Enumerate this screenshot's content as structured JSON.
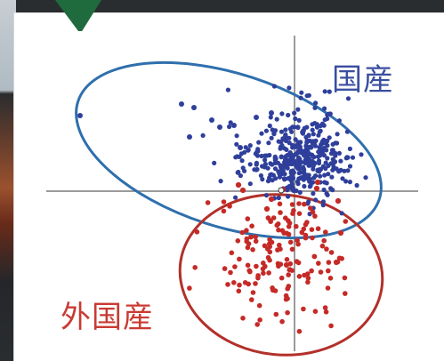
{
  "photo": {
    "labels": {
      "domestic": "国産",
      "foreign": "外国産"
    },
    "colors": {
      "domestic_points": "#2f3f9b",
      "domestic_ellipse": "#2f6fad",
      "foreign_points": "#c52a27",
      "foreign_ellipse": "#b3302a",
      "axes": "#7a7a7a",
      "green_tab": "#1f6b3d"
    },
    "background_tags": [
      "blurred-photo-strip"
    ]
  }
}
